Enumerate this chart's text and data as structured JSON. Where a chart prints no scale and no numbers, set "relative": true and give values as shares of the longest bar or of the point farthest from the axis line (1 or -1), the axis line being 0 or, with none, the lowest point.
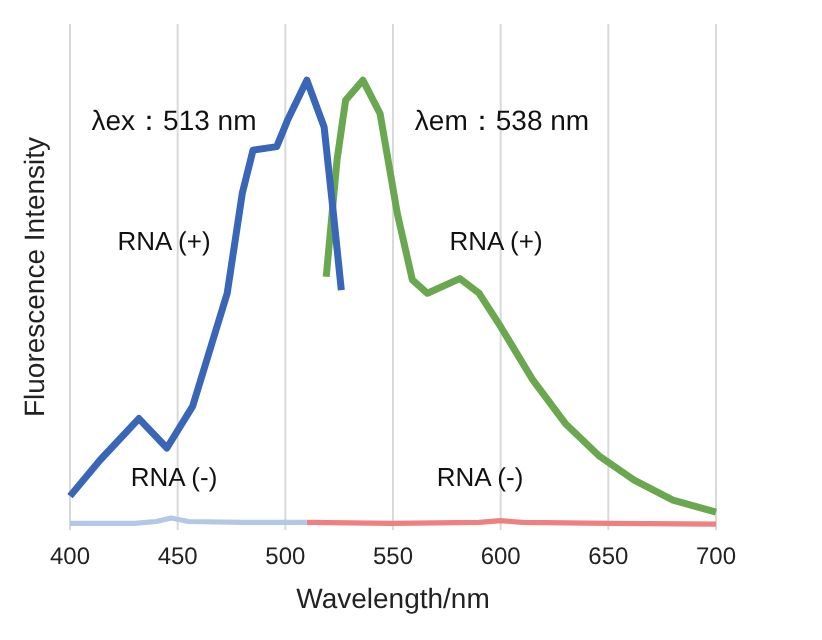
{
  "chart_data": {
    "type": "line",
    "relative": true,
    "xlabel": "Wavelength/nm",
    "ylabel": "Fluorescence Intensity",
    "xlim": [
      400,
      700
    ],
    "xticks": [
      400,
      450,
      500,
      550,
      600,
      650,
      700
    ],
    "grid": "x",
    "marker": "none",
    "line_style": "solid",
    "annotations": [
      "λex：513 nm",
      "λem：538 nm",
      "RNA (+)",
      "RNA (+)",
      "RNA (-)",
      "RNA (-)"
    ],
    "series": [
      {
        "color": "#3a66b8",
        "x": [
          400,
          414,
          432,
          445,
          457,
          473,
          480,
          485,
          496,
          501,
          510,
          518,
          522,
          526
        ],
        "values": [
          0.067,
          0.148,
          0.241,
          0.175,
          0.269,
          0.522,
          0.746,
          0.843,
          0.851,
          0.91,
          1,
          0.895,
          0.716,
          0.529
        ]
      },
      {
        "color": "#6aa84f",
        "x": [
          519,
          524,
          528,
          536,
          544,
          552,
          559,
          566,
          581,
          590,
          600,
          615,
          630,
          646,
          662,
          680,
          700
        ],
        "values": [
          0.559,
          0.821,
          0.955,
          1,
          0.925,
          0.701,
          0.552,
          0.522,
          0.555,
          0.522,
          0.447,
          0.327,
          0.23,
          0.156,
          0.103,
          0.058,
          0.031
        ]
      },
      {
        "color": "#b4c7e7",
        "x": [
          400,
          430,
          440,
          447,
          455,
          480,
          510
        ],
        "values": [
          0.006,
          0.006,
          0.01,
          0.018,
          0.01,
          0.008,
          0.008
        ]
      },
      {
        "color": "#ee8080",
        "x": [
          510,
          550,
          590,
          600,
          610,
          650,
          700
        ],
        "values": [
          0.008,
          0.006,
          0.008,
          0.012,
          0.008,
          0.006,
          0.004
        ]
      }
    ]
  }
}
